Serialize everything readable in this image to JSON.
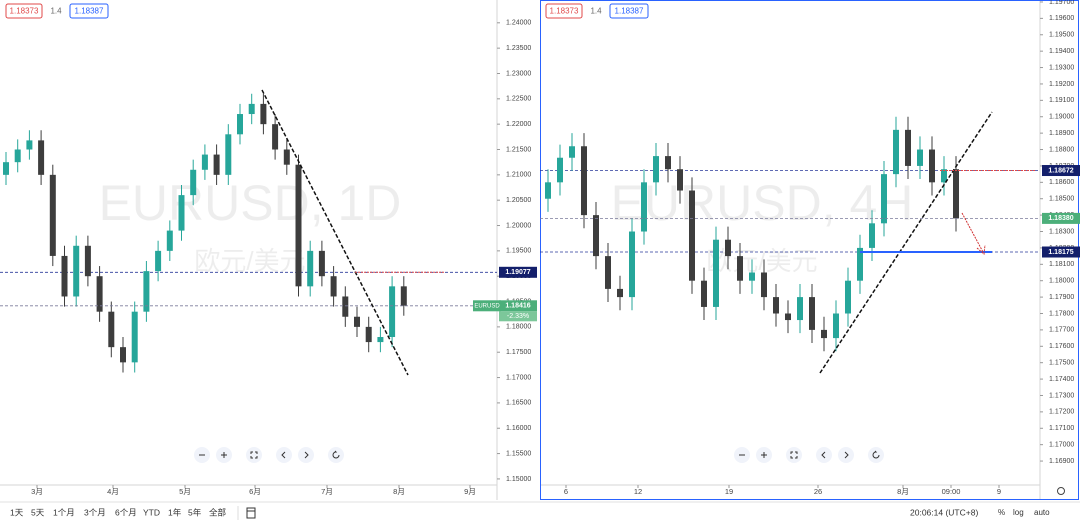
{
  "toolbar": {
    "ranges": [
      "1天",
      "5天",
      "1个月",
      "3个月",
      "6个月",
      "YTD",
      "1年",
      "5年",
      "全部"
    ],
    "time": "20:06:14 (UTC+8)",
    "options": [
      "%",
      "log",
      "auto"
    ]
  },
  "chart_data": [
    {
      "type": "candlestick",
      "title": "EURUSD, 1D",
      "subtitle": "欧元/美元",
      "legend": [
        "1.18373",
        "1.4",
        "1.18387"
      ],
      "x_labels": [
        "3月",
        "4月",
        "5月",
        "6月",
        "7月",
        "8月",
        "9月"
      ],
      "open": [
        1.21,
        1.2125,
        1.215,
        1.2168,
        1.21,
        1.194,
        1.186,
        1.196,
        1.19,
        1.183,
        1.176,
        1.173,
        1.183,
        1.191,
        1.195,
        1.199,
        1.206,
        1.211,
        1.214,
        1.21,
        1.218,
        1.222,
        1.224,
        1.22,
        1.215,
        1.212,
        1.188,
        1.195,
        1.19,
        1.186,
        1.182,
        1.18,
        1.177,
        1.178,
        1.188
      ],
      "high": [
        1.2145,
        1.217,
        1.2188,
        1.2188,
        1.212,
        1.196,
        1.198,
        1.198,
        1.192,
        1.185,
        1.178,
        1.185,
        1.193,
        1.197,
        1.201,
        1.208,
        1.213,
        1.216,
        1.216,
        1.22,
        1.224,
        1.226,
        1.226,
        1.222,
        1.217,
        1.214,
        1.197,
        1.197,
        1.192,
        1.188,
        1.184,
        1.182,
        1.18,
        1.19,
        1.19
      ],
      "low": [
        1.208,
        1.2105,
        1.213,
        1.208,
        1.192,
        1.184,
        1.184,
        1.188,
        1.181,
        1.174,
        1.171,
        1.171,
        1.181,
        1.189,
        1.193,
        1.197,
        1.204,
        1.209,
        1.208,
        1.208,
        1.216,
        1.22,
        1.218,
        1.213,
        1.21,
        1.186,
        1.186,
        1.188,
        1.184,
        1.18,
        1.178,
        1.175,
        1.175,
        1.176,
        1.1822
      ],
      "close": [
        1.2125,
        1.215,
        1.2168,
        1.21,
        1.194,
        1.186,
        1.196,
        1.19,
        1.183,
        1.176,
        1.173,
        1.183,
        1.191,
        1.195,
        1.199,
        1.206,
        1.211,
        1.214,
        1.21,
        1.218,
        1.222,
        1.224,
        1.22,
        1.215,
        1.212,
        1.188,
        1.195,
        1.19,
        1.186,
        1.182,
        1.18,
        1.177,
        1.178,
        1.188,
        1.1842
      ],
      "up_color": "#26a69a",
      "down_color": "#3d3d3d",
      "ylim": [
        1.1488,
        1.2445
      ],
      "yticks": [
        {
          "value": 1.15,
          "label": "1.15000"
        },
        {
          "value": 1.155,
          "label": "1.15500"
        },
        {
          "value": 1.16,
          "label": "1.16000"
        },
        {
          "value": 1.165,
          "label": "1.16500"
        },
        {
          "value": 1.17,
          "label": "1.17000"
        },
        {
          "value": 1.175,
          "label": "1.17500"
        },
        {
          "value": 1.18,
          "label": "1.18000"
        },
        {
          "value": 1.185,
          "label": "1.18500"
        },
        {
          "value": 1.19,
          "label": "1.19000"
        },
        {
          "value": 1.195,
          "label": "1.19500"
        },
        {
          "value": 1.2,
          "label": "1.20000"
        },
        {
          "value": 1.205,
          "label": "1.20500"
        },
        {
          "value": 1.21,
          "label": "1.21000"
        },
        {
          "value": 1.215,
          "label": "1.21500"
        },
        {
          "value": 1.22,
          "label": "1.22000"
        },
        {
          "value": 1.225,
          "label": "1.22500"
        },
        {
          "value": 1.23,
          "label": "1.23000"
        },
        {
          "value": 1.235,
          "label": "1.23500"
        },
        {
          "value": 1.24,
          "label": "1.24000"
        }
      ],
      "levels": [
        {
          "value": 1.19077,
          "label": "1.19077"
        }
      ],
      "last_price": {
        "value": 1.18416,
        "label": "1.18416"
      },
      "symbol": "EURUSD",
      "change": "-2.33%"
    },
    {
      "type": "candlestick",
      "title": "EURUSD, 4H",
      "subtitle": "欧元/美元",
      "legend": [
        "1.18373",
        "1.4",
        "1.18387"
      ],
      "x_labels": [
        "6",
        "12",
        "19",
        "26",
        "8月",
        "09:00",
        "9"
      ],
      "open": [
        1.185,
        1.186,
        1.1875,
        1.1882,
        1.184,
        1.1815,
        1.1795,
        1.179,
        1.183,
        1.186,
        1.1876,
        1.1868,
        1.1855,
        1.18,
        1.1784,
        1.1825,
        1.1815,
        1.18,
        1.1805,
        1.179,
        1.178,
        1.1776,
        1.179,
        1.177,
        1.1765,
        1.178,
        1.18,
        1.182,
        1.1835,
        1.1865,
        1.1892,
        1.187,
        1.188,
        1.186,
        1.1868
      ],
      "high": [
        1.1868,
        1.1883,
        1.189,
        1.189,
        1.1848,
        1.1823,
        1.1803,
        1.1838,
        1.1868,
        1.1884,
        1.1884,
        1.1876,
        1.1863,
        1.1808,
        1.1833,
        1.1833,
        1.1823,
        1.1813,
        1.1813,
        1.1798,
        1.1788,
        1.1798,
        1.1798,
        1.1778,
        1.1788,
        1.1808,
        1.1828,
        1.1843,
        1.1873,
        1.19,
        1.19,
        1.1888,
        1.1888,
        1.1876,
        1.1876
      ],
      "low": [
        1.1842,
        1.1852,
        1.1867,
        1.1832,
        1.1807,
        1.1787,
        1.1782,
        1.1782,
        1.1822,
        1.1852,
        1.186,
        1.1847,
        1.1792,
        1.1776,
        1.1776,
        1.1807,
        1.1792,
        1.1792,
        1.1782,
        1.1772,
        1.1768,
        1.1768,
        1.1762,
        1.1757,
        1.1757,
        1.1772,
        1.1792,
        1.1812,
        1.1827,
        1.1857,
        1.1862,
        1.1862,
        1.1852,
        1.1852,
        1.183
      ],
      "close": [
        1.186,
        1.1875,
        1.1882,
        1.184,
        1.1815,
        1.1795,
        1.179,
        1.183,
        1.186,
        1.1876,
        1.1868,
        1.1855,
        1.18,
        1.1784,
        1.1825,
        1.1815,
        1.18,
        1.1805,
        1.179,
        1.178,
        1.1776,
        1.179,
        1.177,
        1.1765,
        1.178,
        1.18,
        1.182,
        1.1835,
        1.1865,
        1.1892,
        1.187,
        1.188,
        1.186,
        1.1868,
        1.1838
      ],
      "up_color": "#26a69a",
      "down_color": "#3d3d3d",
      "ylim": [
        1.16754,
        1.19712
      ],
      "yticks": [
        {
          "value": 1.169,
          "label": "1.16900"
        },
        {
          "value": 1.17,
          "label": "1.17000"
        },
        {
          "value": 1.171,
          "label": "1.17100"
        },
        {
          "value": 1.172,
          "label": "1.17200"
        },
        {
          "value": 1.173,
          "label": "1.17300"
        },
        {
          "value": 1.174,
          "label": "1.17400"
        },
        {
          "value": 1.175,
          "label": "1.17500"
        },
        {
          "value": 1.176,
          "label": "1.17600"
        },
        {
          "value": 1.177,
          "label": "1.17700"
        },
        {
          "value": 1.178,
          "label": "1.17800"
        },
        {
          "value": 1.179,
          "label": "1.17900"
        },
        {
          "value": 1.18,
          "label": "1.18000"
        },
        {
          "value": 1.181,
          "label": "1.18100"
        },
        {
          "value": 1.182,
          "label": "1.18200"
        },
        {
          "value": 1.183,
          "label": "1.18300"
        },
        {
          "value": 1.184,
          "label": "1.18400"
        },
        {
          "value": 1.185,
          "label": "1.18500"
        },
        {
          "value": 1.186,
          "label": "1.18600"
        },
        {
          "value": 1.187,
          "label": "1.18700"
        },
        {
          "value": 1.188,
          "label": "1.18800"
        },
        {
          "value": 1.189,
          "label": "1.18900"
        },
        {
          "value": 1.19,
          "label": "1.19000"
        },
        {
          "value": 1.191,
          "label": "1.19100"
        },
        {
          "value": 1.192,
          "label": "1.19200"
        },
        {
          "value": 1.193,
          "label": "1.19300"
        },
        {
          "value": 1.194,
          "label": "1.19400"
        },
        {
          "value": 1.195,
          "label": "1.19500"
        },
        {
          "value": 1.196,
          "label": "1.19600"
        },
        {
          "value": 1.197,
          "label": "1.19700"
        }
      ],
      "levels": [
        {
          "value": 1.18672,
          "label": "1.18672"
        },
        {
          "value": 1.18175,
          "label": "1.18175"
        }
      ],
      "last_price": {
        "value": 1.1838,
        "label": "1.18380"
      }
    }
  ]
}
